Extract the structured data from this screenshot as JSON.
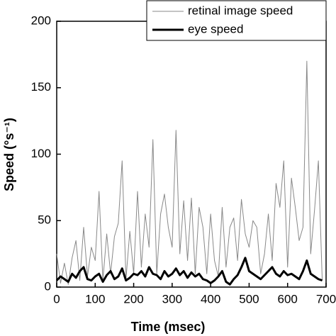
{
  "chart_data": {
    "type": "line",
    "x_label": "Time (msec)",
    "y_label": "Speed (°s⁻¹)",
    "xlim": [
      0,
      700
    ],
    "xticks": [
      0,
      100,
      200,
      300,
      400,
      500,
      600,
      700
    ],
    "ylim": [
      0,
      200
    ],
    "yticks": [
      0,
      50,
      100,
      150,
      200
    ],
    "legend": "upper right",
    "x": [
      0,
      10,
      20,
      30,
      40,
      50,
      60,
      70,
      80,
      90,
      100,
      110,
      120,
      130,
      140,
      150,
      160,
      170,
      180,
      190,
      200,
      210,
      220,
      230,
      240,
      250,
      260,
      270,
      280,
      290,
      300,
      310,
      320,
      330,
      340,
      350,
      360,
      370,
      380,
      390,
      400,
      410,
      420,
      430,
      440,
      450,
      460,
      470,
      480,
      490,
      500,
      510,
      520,
      530,
      540,
      550,
      560,
      570,
      580,
      590,
      600,
      610,
      620,
      630,
      640,
      650,
      660,
      670,
      680,
      690
    ],
    "series": [
      {
        "name": "retinal image speed",
        "color": "#888888",
        "width": 1,
        "values": [
          25,
          3,
          18,
          2,
          22,
          35,
          5,
          45,
          8,
          30,
          20,
          72,
          5,
          40,
          10,
          38,
          48,
          95,
          6,
          42,
          10,
          72,
          15,
          55,
          30,
          111,
          10,
          55,
          70,
          45,
          30,
          118,
          25,
          65,
          20,
          67,
          10,
          60,
          45,
          10,
          55,
          20,
          8,
          60,
          15,
          45,
          52,
          20,
          66,
          40,
          30,
          50,
          45,
          10,
          25,
          55,
          20,
          78,
          60,
          95,
          15,
          82,
          60,
          35,
          45,
          170,
          25,
          58,
          95,
          5
        ]
      },
      {
        "name": "eye speed",
        "color": "#000000",
        "width": 3,
        "values": [
          5,
          8,
          6,
          4,
          10,
          7,
          12,
          15,
          6,
          5,
          8,
          10,
          4,
          9,
          12,
          6,
          8,
          14,
          5,
          7,
          10,
          9,
          12,
          8,
          15,
          10,
          9,
          6,
          12,
          8,
          10,
          14,
          9,
          12,
          7,
          11,
          8,
          10,
          6,
          5,
          3,
          5,
          8,
          12,
          4,
          2,
          6,
          9,
          15,
          22,
          12,
          10,
          8,
          6,
          9,
          12,
          15,
          10,
          8,
          12,
          9,
          10,
          8,
          6,
          12,
          20,
          10,
          8,
          6,
          5
        ]
      }
    ]
  }
}
